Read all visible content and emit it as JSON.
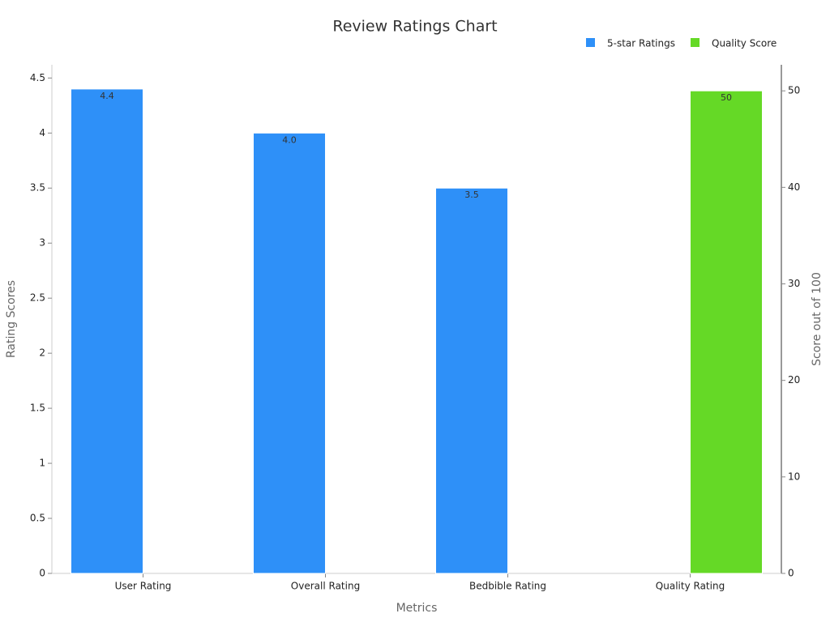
{
  "chart_data": {
    "type": "bar",
    "title": "Review Ratings Chart",
    "x_label": "Metrics",
    "y_label": "Rating Scores",
    "y2_label": "Score out of 100",
    "categories": [
      "User Rating",
      "Overall Rating",
      "Bedbible Rating",
      "Quality Rating"
    ],
    "series": [
      {
        "name": "5-star Ratings",
        "color": "#2e90f8",
        "values": [
          4.4,
          4.0,
          3.5,
          null
        ],
        "value_labels": [
          "4.4",
          "4.0",
          "3.5",
          null
        ]
      },
      {
        "name": "Quality Score",
        "color": "#65d926",
        "axis": "y2",
        "values": [
          null,
          null,
          null,
          50
        ]
      }
    ],
    "ylim": [
      0,
      4.62
    ],
    "yticks": [
      0,
      0.5,
      1,
      1.5,
      2,
      2.5,
      3,
      3.5,
      4,
      4.5
    ],
    "y2lim": [
      0,
      52.7
    ],
    "y2ticks": [
      0,
      10,
      20,
      30,
      40,
      50
    ],
    "grid": false,
    "legend": "top-right"
  }
}
